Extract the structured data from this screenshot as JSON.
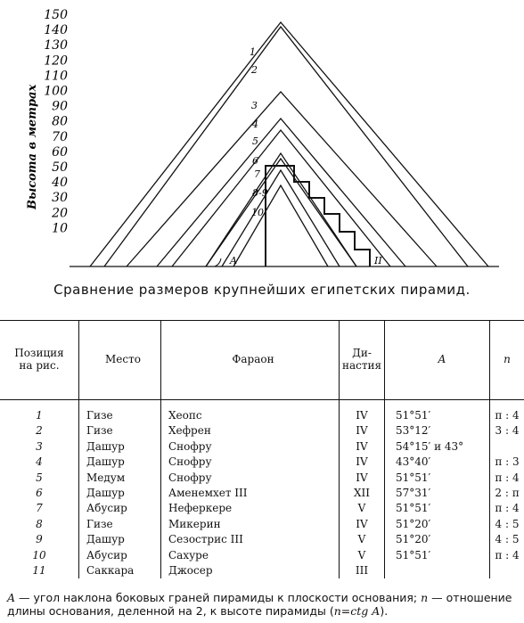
{
  "diagram": {
    "y_axis_label": "Высота в метрах",
    "y_ticks": [
      "150",
      "140",
      "130",
      "120",
      "110",
      "100",
      "90",
      "80",
      "70",
      "60",
      "50",
      "40",
      "30",
      "20",
      "10"
    ],
    "pyramid_labels": [
      "1",
      "2",
      "3",
      "4",
      "5",
      "6",
      "7",
      "8-9",
      "10"
    ],
    "angle_label": "A",
    "step_label": "II"
  },
  "caption": "Сравнение размеров крупнейших египетских пирамид.",
  "table": {
    "headers": {
      "position": [
        "Позиция",
        "на рис."
      ],
      "place": "Место",
      "pharaoh": "Фараон",
      "dynasty": [
        "Ди-",
        "настия"
      ],
      "angle": "A",
      "ratio": "n"
    },
    "rows": [
      {
        "pos": "1",
        "place": "Гизе",
        "pharaoh": "Хеопс",
        "dynasty": "IV",
        "angle": "51°51′",
        "ratio": "π : 4"
      },
      {
        "pos": "2",
        "place": "Гизе",
        "pharaoh": "Хефрен",
        "dynasty": "IV",
        "angle": "53°12′",
        "ratio": "3 : 4"
      },
      {
        "pos": "3",
        "place": "Дашур",
        "pharaoh": "Снофру",
        "dynasty": "IV",
        "angle": "54°15′ и 43°",
        "ratio": ""
      },
      {
        "pos": "4",
        "place": "Дашур",
        "pharaoh": "Снофру",
        "dynasty": "IV",
        "angle": "43°40′",
        "ratio": "π : 3"
      },
      {
        "pos": "5",
        "place": "Медум",
        "pharaoh": "Снофру",
        "dynasty": "IV",
        "angle": "51°51′",
        "ratio": "π : 4"
      },
      {
        "pos": "6",
        "place": "Дашур",
        "pharaoh": "Аменемхет III",
        "dynasty": "XII",
        "angle": "57°31′",
        "ratio": "2 : π"
      },
      {
        "pos": "7",
        "place": "Абусир",
        "pharaoh": "Неферкере",
        "dynasty": "V",
        "angle": "51°51′",
        "ratio": "π : 4"
      },
      {
        "pos": "8",
        "place": "Гизе",
        "pharaoh": "Микерин",
        "dynasty": "IV",
        "angle": "51°20′",
        "ratio": "4 : 5"
      },
      {
        "pos": "9",
        "place": "Дашур",
        "pharaoh": "Сезострис III",
        "dynasty": "V",
        "angle": "51°20′",
        "ratio": "4 : 5"
      },
      {
        "pos": "10",
        "place": "Абусир",
        "pharaoh": "Сахуре",
        "dynasty": "V",
        "angle": "51°51′",
        "ratio": "π : 4"
      },
      {
        "pos": "11",
        "place": "Саккара",
        "pharaoh": "Джосер",
        "dynasty": "III",
        "angle": "",
        "ratio": ""
      }
    ]
  },
  "footnote": {
    "A_sym": "A",
    "text1": " — угол наклона боковых граней пирамиды к плоскости основания; ",
    "n_sym": "n",
    "text2": " — отношение длины основания, деленной на 2, к высоте пирамиды (",
    "formula": "n=ctg A",
    "text3": ")."
  }
}
